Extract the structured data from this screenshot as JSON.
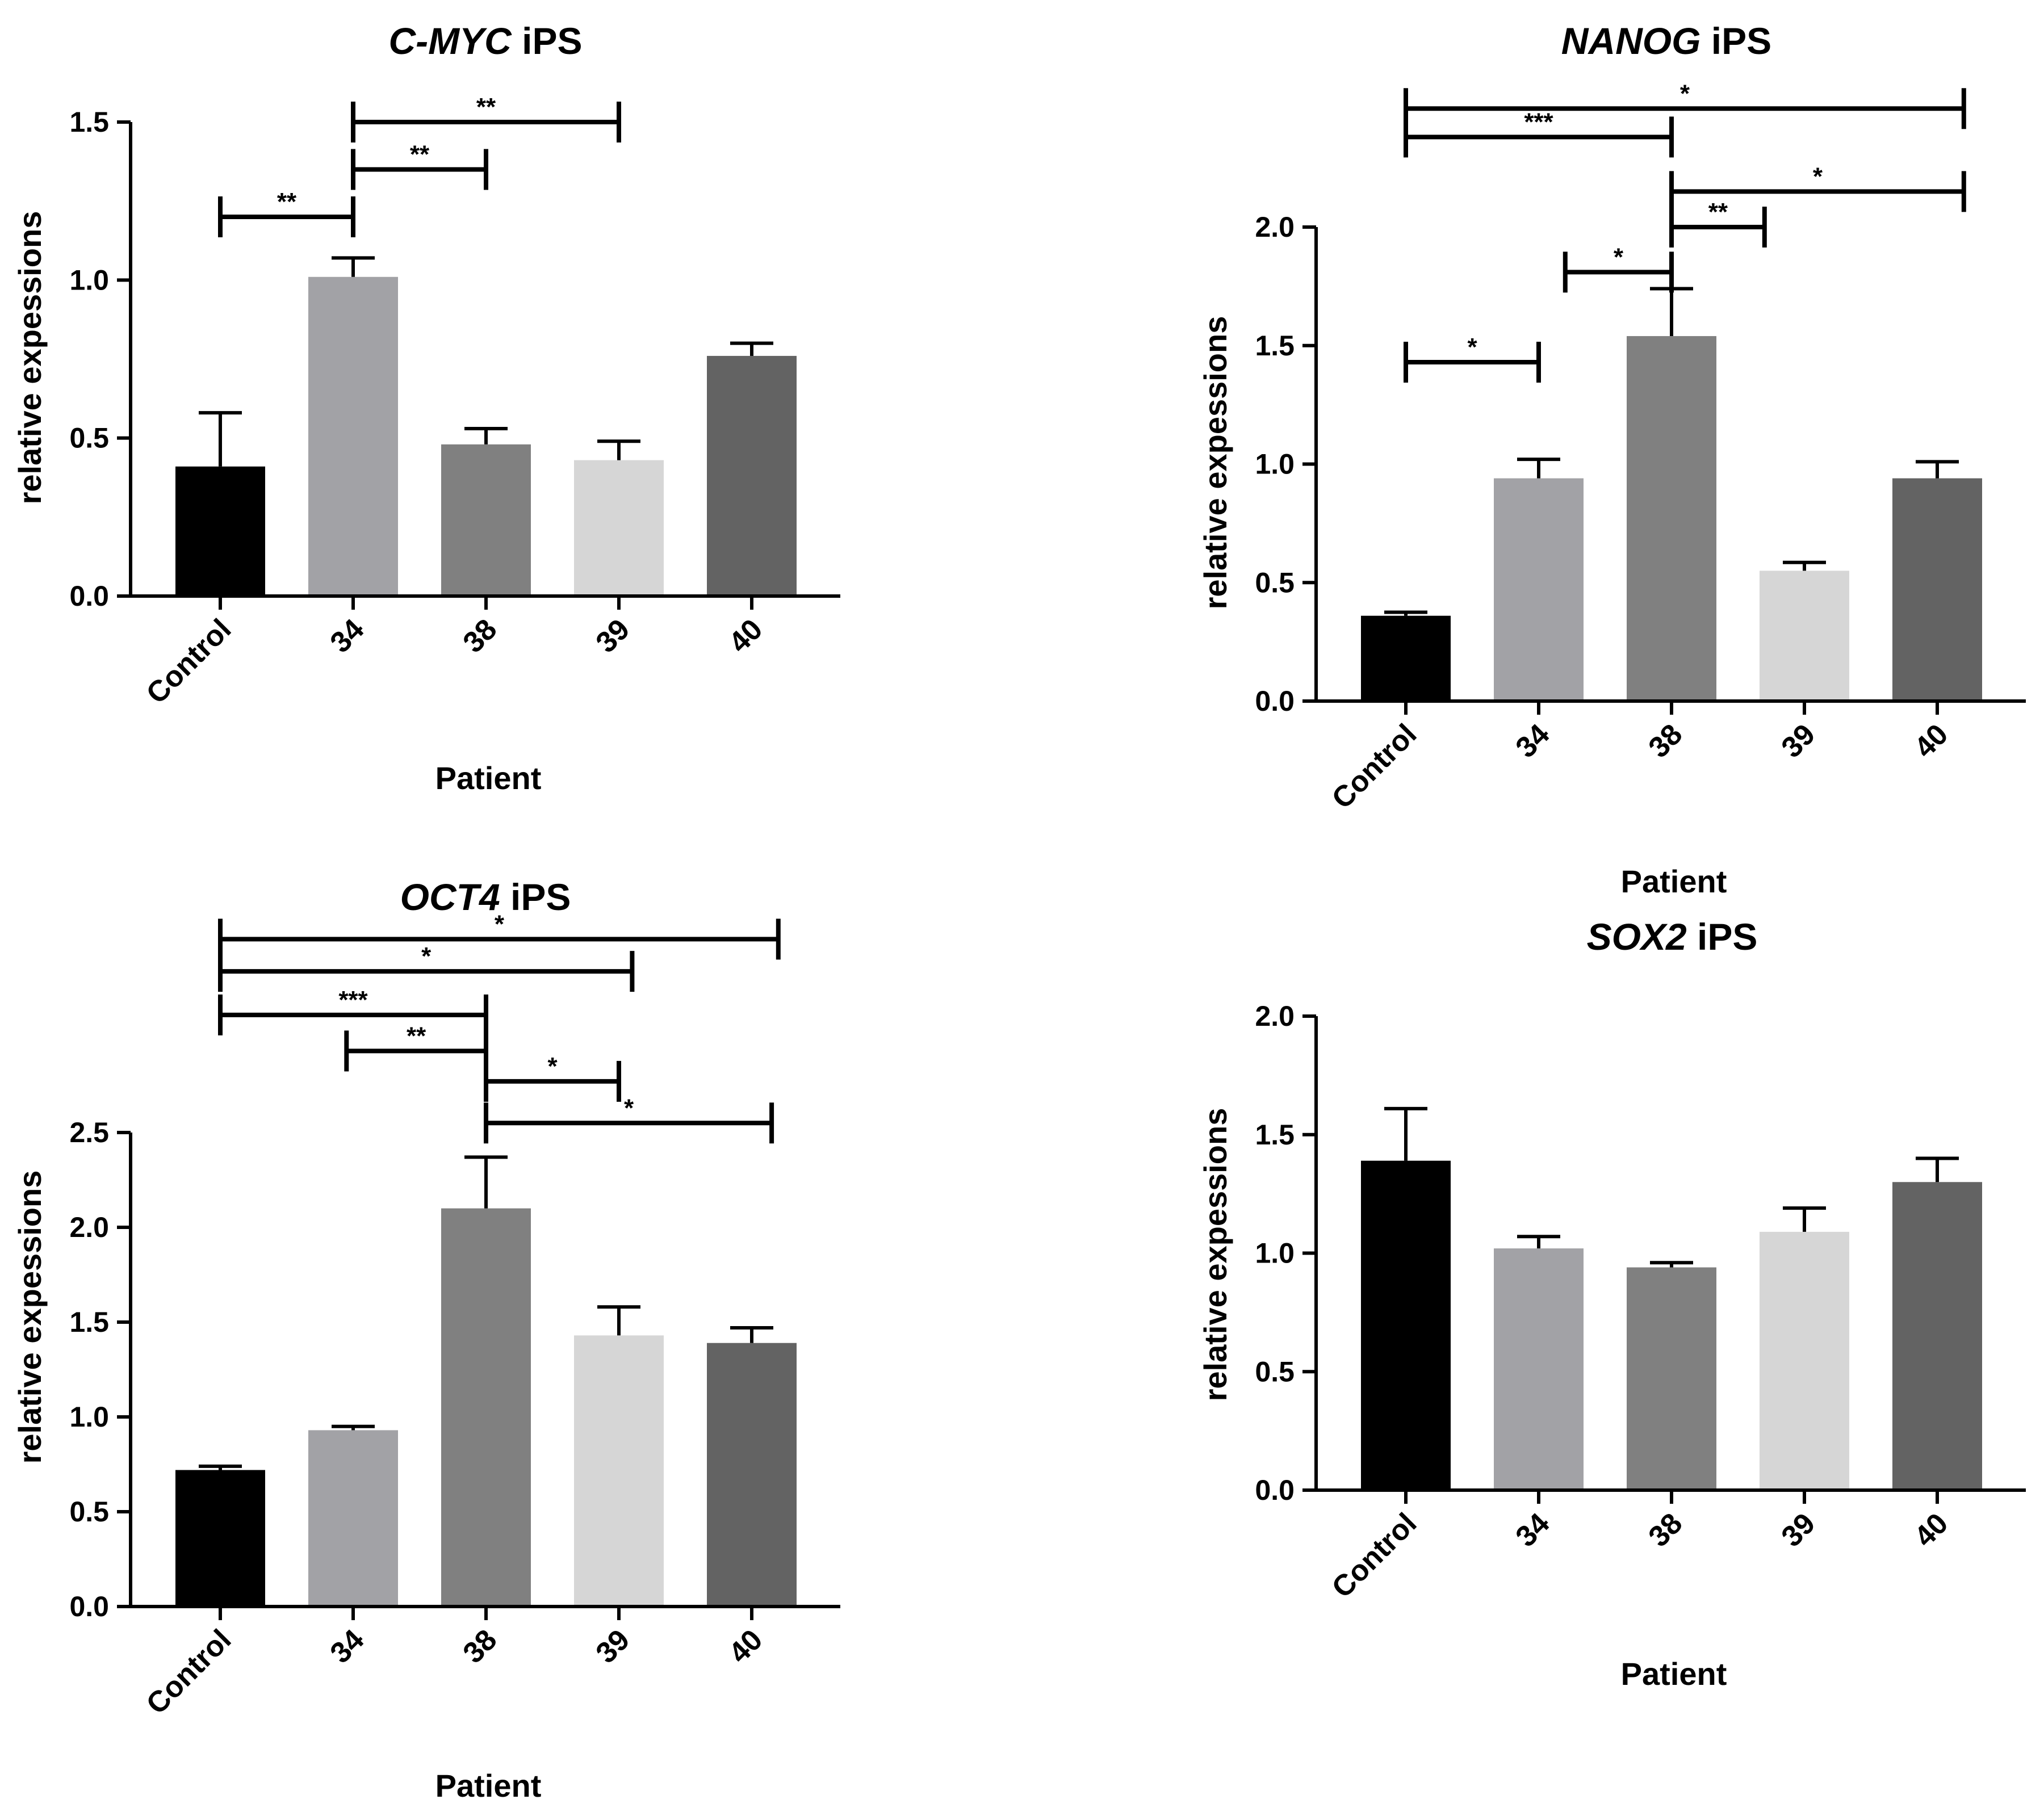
{
  "chart_data": [
    {
      "type": "bar",
      "title_gene": "C-MYC",
      "title_suffix": " iPS",
      "xlabel": "Patient",
      "ylabel": "relative expessions",
      "categories": [
        "Control",
        "34",
        "38",
        "39",
        "40"
      ],
      "values": [
        0.41,
        1.01,
        0.48,
        0.43,
        0.76
      ],
      "errors": [
        0.17,
        0.06,
        0.05,
        0.06,
        0.04
      ],
      "colors": [
        "#000000",
        "#a2a2a6",
        "#808080",
        "#d6d6d6",
        "#636363"
      ],
      "ylim": [
        0,
        1.5
      ],
      "yticks": [
        "0.0",
        "0.5",
        "1.0",
        "1.5"
      ],
      "yticks_values": [
        0,
        0.5,
        1.0,
        1.5
      ],
      "significance": [
        {
          "from": 0,
          "to": 1,
          "level": 1.2,
          "label": "**"
        },
        {
          "from": 1,
          "to": 2,
          "level": 1.35,
          "label": "**"
        },
        {
          "from": 1,
          "to": 3,
          "level": 1.5,
          "label": "**"
        }
      ]
    },
    {
      "type": "bar",
      "title_gene": "NANOG",
      "title_suffix": " iPS",
      "xlabel": "Patient",
      "ylabel": "relative expessions",
      "categories": [
        "Control",
        "34",
        "38",
        "39",
        "40"
      ],
      "values": [
        0.36,
        0.94,
        1.54,
        0.55,
        0.94
      ],
      "errors": [
        0.015,
        0.08,
        0.2,
        0.035,
        0.07
      ],
      "colors": [
        "#000000",
        "#a2a2a6",
        "#808080",
        "#d6d6d6",
        "#636363"
      ],
      "ylim": [
        0,
        2.0
      ],
      "yticks": [
        "0.0",
        "0.5",
        "1.0",
        "1.5",
        "2.0"
      ],
      "yticks_values": [
        0,
        0.5,
        1.0,
        1.5,
        2.0
      ],
      "significance": [
        {
          "from": 0,
          "to": 1,
          "level": 1.43,
          "label": "*"
        },
        {
          "from": 1.2,
          "to": 2,
          "level": 1.81,
          "label": "*"
        },
        {
          "from": 2,
          "to": 2.7,
          "level": 2.0,
          "label": "**"
        },
        {
          "from": 2,
          "to": 4.2,
          "level": 2.15,
          "label": "*"
        },
        {
          "from": 0,
          "to": 2,
          "level": 2.38,
          "label": "***"
        },
        {
          "from": 0,
          "to": 4.2,
          "level": 2.5,
          "label": "*"
        }
      ]
    },
    {
      "type": "bar",
      "title_gene": "OCT4",
      "title_suffix": " iPS",
      "xlabel": "Patient",
      "ylabel": "relative expessions",
      "categories": [
        "Control",
        "34",
        "38",
        "39",
        "40"
      ],
      "values": [
        0.72,
        0.93,
        2.1,
        1.43,
        1.39
      ],
      "errors": [
        0.02,
        0.02,
        0.27,
        0.15,
        0.08
      ],
      "colors": [
        "#000000",
        "#a2a2a6",
        "#808080",
        "#d6d6d6",
        "#636363"
      ],
      "ylim": [
        0,
        2.5
      ],
      "yticks": [
        "0.0",
        "0.5",
        "1.0",
        "1.5",
        "2.0",
        "2.5"
      ],
      "yticks_values": [
        0,
        0.5,
        1.0,
        1.5,
        2.0,
        2.5
      ],
      "significance": [
        {
          "from": 2,
          "to": 4.15,
          "level": 2.55,
          "label": "*"
        },
        {
          "from": 2,
          "to": 3,
          "level": 2.77,
          "label": "*"
        },
        {
          "from": 0.95,
          "to": 2,
          "level": 2.93,
          "label": "**"
        },
        {
          "from": 0,
          "to": 2,
          "level": 3.12,
          "label": "***"
        },
        {
          "from": 0,
          "to": 3.1,
          "level": 3.35,
          "label": "*"
        },
        {
          "from": 0,
          "to": 4.2,
          "level": 3.52,
          "label": "*"
        }
      ]
    },
    {
      "type": "bar",
      "title_gene": "SOX2",
      "title_suffix": " iPS",
      "xlabel": "Patient",
      "ylabel": "relative expessions",
      "categories": [
        "Control",
        "34",
        "38",
        "39",
        "40"
      ],
      "values": [
        1.39,
        1.02,
        0.94,
        1.09,
        1.3
      ],
      "errors": [
        0.22,
        0.05,
        0.02,
        0.1,
        0.1
      ],
      "colors": [
        "#000000",
        "#a2a2a6",
        "#808080",
        "#d6d6d6",
        "#636363"
      ],
      "ylim": [
        0,
        2.0
      ],
      "yticks": [
        "0.0",
        "0.5",
        "1.0",
        "1.5",
        "2.0"
      ],
      "yticks_values": [
        0,
        0.5,
        1.0,
        1.5,
        2.0
      ],
      "significance": []
    }
  ]
}
